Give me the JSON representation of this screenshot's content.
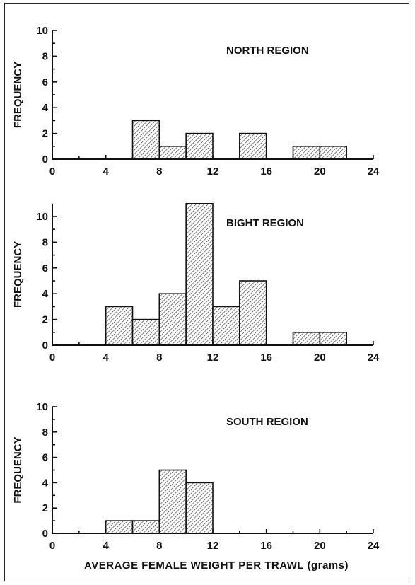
{
  "chart_data": [
    {
      "type": "bar",
      "title": "NORTH REGION",
      "ylabel": "FREQUENCY",
      "xlabel": "",
      "xlim": [
        0,
        24
      ],
      "ylim": [
        0,
        10
      ],
      "xticks": [
        0,
        4,
        8,
        12,
        16,
        20,
        24
      ],
      "yticks": [
        0,
        2,
        4,
        6,
        8,
        10
      ],
      "bin_width": 2,
      "bins": [
        {
          "start": 6,
          "end": 8,
          "value": 3
        },
        {
          "start": 8,
          "end": 10,
          "value": 1
        },
        {
          "start": 10,
          "end": 12,
          "value": 2
        },
        {
          "start": 14,
          "end": 16,
          "value": 2
        },
        {
          "start": 18,
          "end": 20,
          "value": 1
        },
        {
          "start": 20,
          "end": 22,
          "value": 1
        }
      ]
    },
    {
      "type": "bar",
      "title": "BIGHT REGION",
      "ylabel": "FREQUENCY",
      "xlabel": "",
      "xlim": [
        0,
        24
      ],
      "ylim": [
        0,
        11
      ],
      "xticks": [
        0,
        4,
        8,
        12,
        16,
        20,
        24
      ],
      "yticks": [
        0,
        2,
        4,
        6,
        8,
        10
      ],
      "bin_width": 2,
      "bins": [
        {
          "start": 4,
          "end": 6,
          "value": 3
        },
        {
          "start": 6,
          "end": 8,
          "value": 2
        },
        {
          "start": 8,
          "end": 10,
          "value": 4
        },
        {
          "start": 10,
          "end": 12,
          "value": 11
        },
        {
          "start": 12,
          "end": 14,
          "value": 3
        },
        {
          "start": 14,
          "end": 16,
          "value": 5
        },
        {
          "start": 18,
          "end": 20,
          "value": 1
        },
        {
          "start": 20,
          "end": 22,
          "value": 1
        }
      ]
    },
    {
      "type": "bar",
      "title": "SOUTH REGION",
      "ylabel": "FREQUENCY",
      "xlabel": "AVERAGE FEMALE WEIGHT PER TRAWL (grams)",
      "xlim": [
        0,
        24
      ],
      "ylim": [
        0,
        10
      ],
      "xticks": [
        0,
        4,
        8,
        12,
        16,
        20,
        24
      ],
      "yticks": [
        0,
        2,
        4,
        6,
        8,
        10
      ],
      "bin_width": 2,
      "bins": [
        {
          "start": 4,
          "end": 6,
          "value": 1
        },
        {
          "start": 6,
          "end": 8,
          "value": 1
        },
        {
          "start": 8,
          "end": 10,
          "value": 5
        },
        {
          "start": 10,
          "end": 12,
          "value": 4
        }
      ]
    }
  ],
  "colors": {
    "ink": "#111111",
    "bar_fill": "#ffffff",
    "hatch": "#222222"
  }
}
